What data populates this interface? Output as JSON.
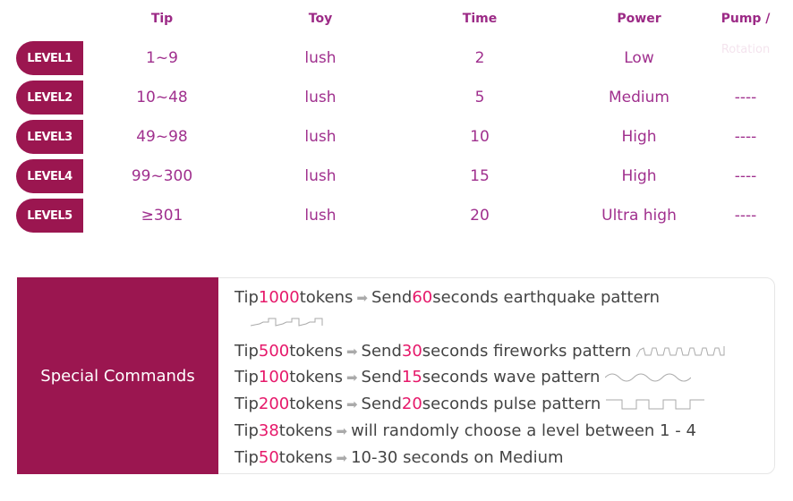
{
  "headers": {
    "tip": "Tip",
    "toy": "Toy",
    "time": "Time",
    "power": "Power",
    "pump": "Pump /",
    "pump2": "Rotation"
  },
  "levels": [
    {
      "label": "LEVEL1",
      "tip": "1~9",
      "toy": "lush",
      "time": "2",
      "power": "Low",
      "pump": ""
    },
    {
      "label": "LEVEL2",
      "tip": "10~48",
      "toy": "lush",
      "time": "5",
      "power": "Medium",
      "pump": "----"
    },
    {
      "label": "LEVEL3",
      "tip": "49~98",
      "toy": "lush",
      "time": "10",
      "power": "High",
      "pump": "----"
    },
    {
      "label": "LEVEL4",
      "tip": "99~300",
      "toy": "lush",
      "time": "15",
      "power": "High",
      "pump": "----"
    },
    {
      "label": "LEVEL5",
      "tip": "≥301",
      "toy": "lush",
      "time": "20",
      "power": "Ultra high",
      "pump": "----"
    }
  ],
  "special": {
    "title": "Special Commands",
    "lines": [
      {
        "a": "Tip ",
        "n1": "1000",
        "b": " tokens",
        "c": "Send ",
        "n2": "60",
        "d": " seconds earthquake pattern",
        "pattern": "earthquake"
      },
      {
        "a": "Tip ",
        "n1": "500",
        "b": " tokens",
        "c": "Send ",
        "n2": "30",
        "d": " seconds fireworks pattern",
        "pattern": "fireworks"
      },
      {
        "a": "Tip ",
        "n1": "100",
        "b": " tokens",
        "c": "Send ",
        "n2": "15",
        "d": " seconds wave pattern",
        "pattern": "wave"
      },
      {
        "a": "Tip ",
        "n1": "200",
        "b": " tokens",
        "c": "Send ",
        "n2": "20",
        "d": " seconds pulse pattern",
        "pattern": "pulse"
      },
      {
        "a": "Tip ",
        "n1": "38",
        "b": " tokens",
        "c": "will randomly choose a level between 1 - 4",
        "n2": "",
        "d": "",
        "pattern": ""
      },
      {
        "a": "Tip ",
        "n1": "50",
        "b": " tokens",
        "c": "10-30 seconds on Medium",
        "n2": "",
        "d": "",
        "pattern": ""
      }
    ]
  },
  "colors": {
    "accent": "#9b1650",
    "text": "#a0308e",
    "number": "#e6186a"
  }
}
